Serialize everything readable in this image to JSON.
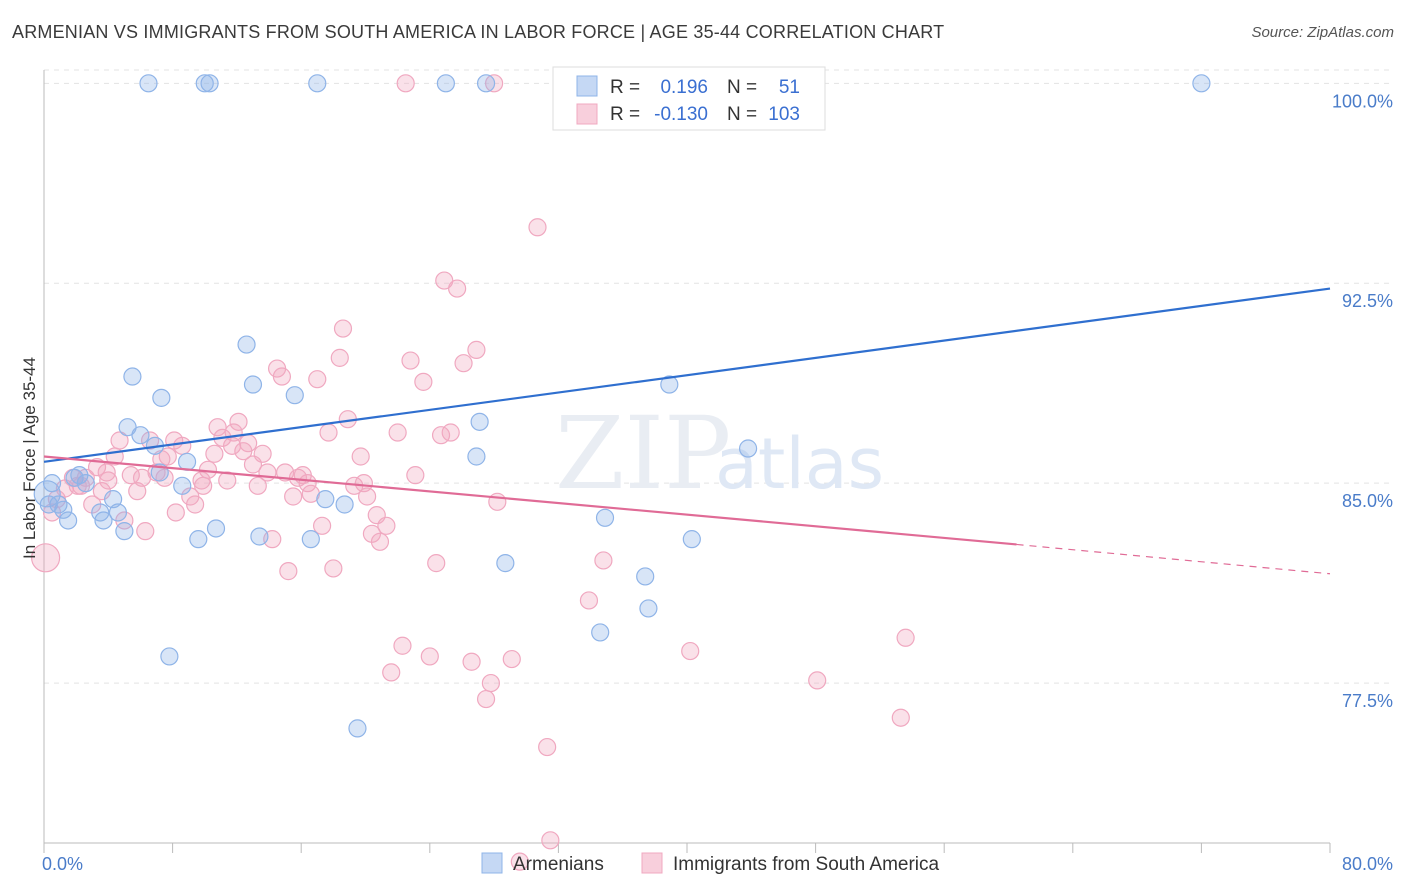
{
  "title": "ARMENIAN VS IMMIGRANTS FROM SOUTH AMERICA IN LABOR FORCE | AGE 35-44 CORRELATION CHART",
  "source": "Source: ZipAtlas.com",
  "watermark": {
    "zip": "ZIP",
    "atlas": "atlas"
  },
  "colors": {
    "armenians": "#8fb4e8",
    "armenians_line": "#2f6fcf",
    "immigrants": "#f0a8c0",
    "immigrants_line": "#e06b96",
    "tick_text": "#4a7cc9"
  },
  "legend_top": {
    "rows": [
      {
        "r_label": "R =",
        "r_value": "0.196",
        "n_label": "N =",
        "n_value": "51"
      },
      {
        "r_label": "R =",
        "r_value": "-0.130",
        "n_label": "N =",
        "n_value": "103"
      }
    ]
  },
  "legend_bottom": [
    "Armenians",
    "Immigrants from South America"
  ],
  "chart_data": {
    "type": "scatter",
    "title": "ARMENIAN VS IMMIGRANTS FROM SOUTH AMERICA IN LABOR FORCE | AGE 35-44 CORRELATION CHART",
    "xlabel": "",
    "ylabel": "In Labor Force | Age 35-44",
    "xlim": [
      0,
      80
    ],
    "ylim": [
      71.5,
      100.5
    ],
    "x_tick_labels": [
      "0.0%",
      "80.0%"
    ],
    "y_ticks": [
      77.5,
      85.0,
      92.5,
      100.0
    ],
    "y_tick_labels": [
      "77.5%",
      "85.0%",
      "92.5%",
      "100.0%"
    ],
    "grid": "horizontal dashed",
    "series": [
      {
        "name": "Armenians",
        "r": 0.196,
        "n": 51,
        "trend": {
          "x": [
            0,
            80
          ],
          "y": [
            85.8,
            92.3
          ]
        },
        "points": [
          [
            0.2,
            84.6
          ],
          [
            0.5,
            85.0
          ],
          [
            0.9,
            84.2
          ],
          [
            1.2,
            84.0
          ],
          [
            1.5,
            83.6
          ],
          [
            1.9,
            85.2
          ],
          [
            2.2,
            85.3
          ],
          [
            2.6,
            85.0
          ],
          [
            3.5,
            83.9
          ],
          [
            3.7,
            83.6
          ],
          [
            4.3,
            84.4
          ],
          [
            4.6,
            83.9
          ],
          [
            5.0,
            83.2
          ],
          [
            5.2,
            87.1
          ],
          [
            5.5,
            89.0
          ],
          [
            6.0,
            86.8
          ],
          [
            6.5,
            100.0
          ],
          [
            6.9,
            86.4
          ],
          [
            7.2,
            85.4
          ],
          [
            7.3,
            88.2
          ],
          [
            7.8,
            78.5
          ],
          [
            8.6,
            84.9
          ],
          [
            8.9,
            85.8
          ],
          [
            9.6,
            82.9
          ],
          [
            10.0,
            100.0
          ],
          [
            10.3,
            100.0
          ],
          [
            10.7,
            83.3
          ],
          [
            12.6,
            90.2
          ],
          [
            13.0,
            88.7
          ],
          [
            13.4,
            83.0
          ],
          [
            15.6,
            88.3
          ],
          [
            16.6,
            82.9
          ],
          [
            17.5,
            84.4
          ],
          [
            17.0,
            100.0
          ],
          [
            18.7,
            84.2
          ],
          [
            19.5,
            75.8
          ],
          [
            25.0,
            100.0
          ],
          [
            26.9,
            86.0
          ],
          [
            27.1,
            87.3
          ],
          [
            27.5,
            100.0
          ],
          [
            28.7,
            82.0
          ],
          [
            34.8,
            100.0
          ],
          [
            34.9,
            83.7
          ],
          [
            34.6,
            79.4
          ],
          [
            37.4,
            81.5
          ],
          [
            37.6,
            80.3
          ],
          [
            38.9,
            88.7
          ],
          [
            40.3,
            82.9
          ],
          [
            43.8,
            86.3
          ],
          [
            72.0,
            100.0
          ],
          [
            0.3,
            84.2
          ]
        ]
      },
      {
        "name": "Immigrants from South America",
        "r": -0.13,
        "n": 103,
        "trend": {
          "x": [
            0,
            60.5
          ],
          "y": [
            86.0,
            82.7
          ]
        },
        "trend_dashed": {
          "x": [
            60.5,
            80
          ],
          "y": [
            82.7,
            81.6
          ]
        },
        "points": [
          [
            0.1,
            82.2
          ],
          [
            0.5,
            83.9
          ],
          [
            0.8,
            84.4
          ],
          [
            1.3,
            84.8
          ],
          [
            1.8,
            85.2
          ],
          [
            2.1,
            84.9
          ],
          [
            2.6,
            85.2
          ],
          [
            3.0,
            84.2
          ],
          [
            3.3,
            85.6
          ],
          [
            3.6,
            84.7
          ],
          [
            4.0,
            85.1
          ],
          [
            4.4,
            86.0
          ],
          [
            4.7,
            86.6
          ],
          [
            5.0,
            83.6
          ],
          [
            5.4,
            85.3
          ],
          [
            5.8,
            84.7
          ],
          [
            6.1,
            85.2
          ],
          [
            6.3,
            83.2
          ],
          [
            6.6,
            86.6
          ],
          [
            7.0,
            85.4
          ],
          [
            7.3,
            85.9
          ],
          [
            7.7,
            86.0
          ],
          [
            8.1,
            86.6
          ],
          [
            8.2,
            83.9
          ],
          [
            8.6,
            86.4
          ],
          [
            9.1,
            84.5
          ],
          [
            9.4,
            84.2
          ],
          [
            9.8,
            85.1
          ],
          [
            10.2,
            85.5
          ],
          [
            10.6,
            86.1
          ],
          [
            10.8,
            87.1
          ],
          [
            11.1,
            86.7
          ],
          [
            11.4,
            85.1
          ],
          [
            11.8,
            86.9
          ],
          [
            12.1,
            87.3
          ],
          [
            12.4,
            86.2
          ],
          [
            12.7,
            86.5
          ],
          [
            13.0,
            85.7
          ],
          [
            13.3,
            84.9
          ],
          [
            13.6,
            86.1
          ],
          [
            13.9,
            85.4
          ],
          [
            14.5,
            89.3
          ],
          [
            14.8,
            89.0
          ],
          [
            15.2,
            81.7
          ],
          [
            15.5,
            84.5
          ],
          [
            15.8,
            85.2
          ],
          [
            16.1,
            85.3
          ],
          [
            16.4,
            85.0
          ],
          [
            16.6,
            84.6
          ],
          [
            17.0,
            88.9
          ],
          [
            17.3,
            83.4
          ],
          [
            17.7,
            86.9
          ],
          [
            18.0,
            81.8
          ],
          [
            18.4,
            89.7
          ],
          [
            18.6,
            90.8
          ],
          [
            18.9,
            87.4
          ],
          [
            19.3,
            84.9
          ],
          [
            19.7,
            86.0
          ],
          [
            20.1,
            84.5
          ],
          [
            20.4,
            83.1
          ],
          [
            20.7,
            83.8
          ],
          [
            20.9,
            82.8
          ],
          [
            21.3,
            83.4
          ],
          [
            21.6,
            77.9
          ],
          [
            22.0,
            86.9
          ],
          [
            22.3,
            78.9
          ],
          [
            22.8,
            89.6
          ],
          [
            23.1,
            85.3
          ],
          [
            23.6,
            88.8
          ],
          [
            24.0,
            78.5
          ],
          [
            24.4,
            82.0
          ],
          [
            24.9,
            92.6
          ],
          [
            25.3,
            86.9
          ],
          [
            25.7,
            92.3
          ],
          [
            26.1,
            89.5
          ],
          [
            26.6,
            78.3
          ],
          [
            26.9,
            90.0
          ],
          [
            27.5,
            76.9
          ],
          [
            27.8,
            77.5
          ],
          [
            28.2,
            84.3
          ],
          [
            29.1,
            78.4
          ],
          [
            29.6,
            70.8
          ],
          [
            30.7,
            94.6
          ],
          [
            31.3,
            75.1
          ],
          [
            31.5,
            71.6
          ],
          [
            33.9,
            80.6
          ],
          [
            34.8,
            82.1
          ],
          [
            37.5,
            100.0
          ],
          [
            40.2,
            78.7
          ],
          [
            48.1,
            77.6
          ],
          [
            53.3,
            76.2
          ],
          [
            53.6,
            79.2
          ],
          [
            22.5,
            100.0
          ],
          [
            28.0,
            100.0
          ],
          [
            2.3,
            84.9
          ],
          [
            3.9,
            85.4
          ],
          [
            7.5,
            85.2
          ],
          [
            9.9,
            84.9
          ],
          [
            11.7,
            86.4
          ],
          [
            14.2,
            82.9
          ],
          [
            15.0,
            85.4
          ],
          [
            19.9,
            85.0
          ],
          [
            24.7,
            86.8
          ]
        ]
      }
    ]
  }
}
